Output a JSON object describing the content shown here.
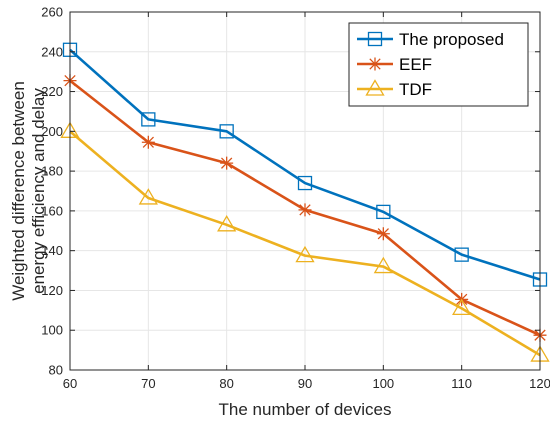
{
  "chart_data": {
    "type": "line",
    "title": "",
    "xlabel": "The number of devices",
    "ylabel_lines": [
      "Weighted difference between",
      "energy efficiency and delay"
    ],
    "x": [
      60,
      70,
      80,
      90,
      100,
      110,
      120
    ],
    "xlim": [
      60,
      120
    ],
    "ylim": [
      80,
      260
    ],
    "xticks": [
      60,
      70,
      80,
      90,
      100,
      110,
      120
    ],
    "yticks": [
      80,
      100,
      120,
      140,
      160,
      180,
      200,
      220,
      240,
      260
    ],
    "grid": true,
    "legend_position": "top-right",
    "series": [
      {
        "name": "The proposed",
        "color": "#0072BD",
        "marker": "square",
        "values": [
          241,
          206,
          200,
          174,
          159.5,
          138,
          125.5
        ]
      },
      {
        "name": "EEF",
        "color": "#D95319",
        "marker": "asterisk",
        "values": [
          225.5,
          194.5,
          184,
          160.5,
          148.5,
          115.5,
          97.5
        ]
      },
      {
        "name": "TDF",
        "color": "#EDB120",
        "marker": "triangle",
        "values": [
          200,
          166.5,
          153,
          137.5,
          132,
          111,
          87.5
        ]
      }
    ]
  }
}
